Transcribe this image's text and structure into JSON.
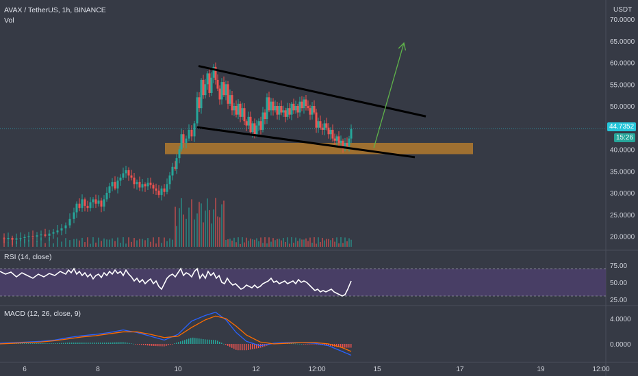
{
  "header": {
    "symbol": "AVAX / TetherUS, 1h, BINANCE",
    "volume_label": "Vol",
    "currency": "USDT"
  },
  "colors": {
    "background": "#363a45",
    "up": "#26a69a",
    "down": "#ef5350",
    "rsi_band": "#4b3f6b",
    "rsi_line": "#ffffff",
    "macd_line": "#2962ff",
    "signal_line": "#ff6d00",
    "support_zone": "#c8852a",
    "trendline": "#000000",
    "arrow": "#5fb34a",
    "last_price": "#26c6da"
  },
  "price_axis": {
    "ticks": [
      "70.0000",
      "65.0000",
      "60.0000",
      "55.0000",
      "50.0000",
      "45.0000",
      "40.0000",
      "35.0000",
      "30.0000",
      "25.0000",
      "20.0000"
    ],
    "last_price": "44.7352",
    "countdown": "15:26"
  },
  "time_axis": {
    "ticks": [
      "6",
      "8",
      "10",
      "12",
      "12:00",
      "15",
      "17",
      "19",
      "12:00"
    ]
  },
  "rsi": {
    "title": "RSI (14, close)",
    "ticks": [
      "75.00",
      "50.00",
      "25.00"
    ]
  },
  "macd": {
    "title": "MACD (12, 26, close, 9)",
    "ticks": [
      "4.0000",
      "0.0000"
    ]
  },
  "chart_data": {
    "type": "candlestick",
    "title": "AVAX / TetherUS, 1h, BINANCE",
    "ylabel": "USDT",
    "ylim": [
      17.5,
      72
    ],
    "last_price": 44.7352,
    "price_path": [
      [
        0,
        19.5
      ],
      [
        6,
        19.3
      ],
      [
        12,
        19.6
      ],
      [
        18,
        19.2
      ],
      [
        24,
        19.5
      ],
      [
        30,
        19.6
      ],
      [
        36,
        19.8
      ],
      [
        42,
        20.0
      ],
      [
        48,
        19.9
      ],
      [
        54,
        20.2
      ],
      [
        60,
        20.4
      ],
      [
        66,
        20.1
      ],
      [
        72,
        20.6
      ],
      [
        78,
        20.9
      ],
      [
        84,
        21.3
      ],
      [
        90,
        21.8
      ],
      [
        96,
        22.5
      ],
      [
        102,
        24.0
      ],
      [
        108,
        25.5
      ],
      [
        112,
        27.5
      ],
      [
        116,
        26.5
      ],
      [
        120,
        28.5
      ],
      [
        124,
        27.0
      ],
      [
        128,
        26.5
      ],
      [
        132,
        27.8
      ],
      [
        136,
        28.5
      ],
      [
        140,
        27.5
      ],
      [
        144,
        28.2
      ],
      [
        148,
        26.8
      ],
      [
        152,
        28.5
      ],
      [
        156,
        30.0
      ],
      [
        160,
        31.5
      ],
      [
        164,
        32.5
      ],
      [
        168,
        31.0
      ],
      [
        172,
        32.8
      ],
      [
        176,
        33.5
      ],
      [
        180,
        34.5
      ],
      [
        184,
        35.2
      ],
      [
        188,
        34.0
      ],
      [
        192,
        33.5
      ],
      [
        196,
        32.0
      ],
      [
        200,
        32.5
      ],
      [
        204,
        31.2
      ],
      [
        208,
        32.0
      ],
      [
        212,
        31.5
      ],
      [
        216,
        32.3
      ],
      [
        220,
        31.8
      ],
      [
        224,
        31.0
      ],
      [
        228,
        30.5
      ],
      [
        232,
        29.5
      ],
      [
        236,
        31.0
      ],
      [
        240,
        30.2
      ],
      [
        244,
        32.0
      ],
      [
        248,
        34.0
      ],
      [
        252,
        36.0
      ],
      [
        256,
        35.5
      ],
      [
        258,
        38.0
      ],
      [
        262,
        40.0
      ],
      [
        265,
        43.5
      ],
      [
        268,
        41.5
      ],
      [
        272,
        42.5
      ],
      [
        276,
        44.5
      ],
      [
        280,
        43.0
      ],
      [
        284,
        46.0
      ],
      [
        288,
        52.0
      ],
      [
        291,
        49.5
      ],
      [
        294,
        56.0
      ],
      [
        297,
        52.5
      ],
      [
        300,
        55.0
      ],
      [
        303,
        57.5
      ],
      [
        306,
        53.0
      ],
      [
        309,
        56.5
      ],
      [
        312,
        59.0
      ],
      [
        315,
        56.0
      ],
      [
        318,
        54.0
      ],
      [
        321,
        51.5
      ],
      [
        324,
        55.5
      ],
      [
        327,
        52.5
      ],
      [
        330,
        55.0
      ],
      [
        333,
        50.5
      ],
      [
        336,
        52.5
      ],
      [
        339,
        49.0
      ],
      [
        342,
        50.0
      ],
      [
        345,
        48.0
      ],
      [
        348,
        50.5
      ],
      [
        351,
        47.5
      ],
      [
        354,
        49.5
      ],
      [
        357,
        46.5
      ],
      [
        360,
        45.5
      ],
      [
        363,
        47.5
      ],
      [
        366,
        44.0
      ],
      [
        369,
        46.0
      ],
      [
        372,
        43.5
      ],
      [
        375,
        45.5
      ],
      [
        378,
        46.5
      ],
      [
        381,
        44.5
      ],
      [
        384,
        48.5
      ],
      [
        387,
        47.0
      ],
      [
        390,
        52.0
      ],
      [
        393,
        49.0
      ],
      [
        396,
        51.0
      ],
      [
        399,
        49.0
      ],
      [
        402,
        50.0
      ],
      [
        405,
        48.0
      ],
      [
        408,
        50.0
      ],
      [
        411,
        48.5
      ],
      [
        414,
        49.0
      ],
      [
        417,
        47.5
      ],
      [
        420,
        49.5
      ],
      [
        423,
        48.0
      ],
      [
        426,
        50.5
      ],
      [
        429,
        49.0
      ],
      [
        432,
        50.0
      ],
      [
        435,
        48.5
      ],
      [
        438,
        51.0
      ],
      [
        441,
        49.5
      ],
      [
        444,
        51.5
      ],
      [
        447,
        50.0
      ],
      [
        450,
        49.5
      ],
      [
        453,
        48.0
      ],
      [
        456,
        50.0
      ],
      [
        459,
        48.5
      ],
      [
        462,
        45.0
      ],
      [
        465,
        46.5
      ],
      [
        468,
        45.0
      ],
      [
        471,
        44.5
      ],
      [
        474,
        46.0
      ],
      [
        477,
        45.0
      ],
      [
        480,
        43.5
      ],
      [
        483,
        44.5
      ],
      [
        486,
        42.5
      ],
      [
        489,
        42.0
      ],
      [
        492,
        43.0
      ],
      [
        495,
        41.5
      ],
      [
        498,
        42.0
      ],
      [
        501,
        40.5
      ],
      [
        504,
        41.5
      ],
      [
        507,
        40.8
      ],
      [
        510,
        42.5
      ],
      [
        513,
        44.7
      ]
    ],
    "annotations": {
      "upper_trendline": {
        "from": [
          290,
          59.2
        ],
        "to": [
          622,
          47.6
        ]
      },
      "lower_trendline": {
        "from": [
          288,
          45.1
        ],
        "to": [
          606,
          38.2
        ]
      },
      "support_zone": {
        "x": [
          241,
          691
        ],
        "y": [
          38.9,
          41.5
        ]
      },
      "breakout_arrow": {
        "from": [
          546,
          40.3
        ],
        "to": [
          590,
          64.5
        ]
      }
    },
    "rsi_path": [
      [
        0,
        66
      ],
      [
        8,
        62
      ],
      [
        16,
        65
      ],
      [
        24,
        58
      ],
      [
        32,
        64
      ],
      [
        40,
        60
      ],
      [
        48,
        56
      ],
      [
        56,
        62
      ],
      [
        64,
        58
      ],
      [
        72,
        63
      ],
      [
        80,
        60
      ],
      [
        88,
        66
      ],
      [
        96,
        62
      ],
      [
        100,
        68
      ],
      [
        104,
        64
      ],
      [
        108,
        70
      ],
      [
        112,
        62
      ],
      [
        116,
        66
      ],
      [
        120,
        60
      ],
      [
        124,
        64
      ],
      [
        128,
        58
      ],
      [
        132,
        62
      ],
      [
        136,
        55
      ],
      [
        140,
        60
      ],
      [
        144,
        62
      ],
      [
        148,
        57
      ],
      [
        152,
        64
      ],
      [
        156,
        60
      ],
      [
        160,
        66
      ],
      [
        164,
        62
      ],
      [
        168,
        68
      ],
      [
        172,
        63
      ],
      [
        176,
        66
      ],
      [
        180,
        60
      ],
      [
        184,
        68
      ],
      [
        188,
        62
      ],
      [
        192,
        58
      ],
      [
        196,
        52
      ],
      [
        200,
        56
      ],
      [
        204,
        50
      ],
      [
        208,
        54
      ],
      [
        212,
        48
      ],
      [
        216,
        52
      ],
      [
        220,
        55
      ],
      [
        224,
        48
      ],
      [
        228,
        52
      ],
      [
        232,
        44
      ],
      [
        236,
        40
      ],
      [
        240,
        48
      ],
      [
        244,
        56
      ],
      [
        248,
        60
      ],
      [
        252,
        62
      ],
      [
        256,
        58
      ],
      [
        260,
        64
      ],
      [
        264,
        70
      ],
      [
        268,
        60
      ],
      [
        272,
        64
      ],
      [
        276,
        62
      ],
      [
        280,
        58
      ],
      [
        284,
        66
      ],
      [
        288,
        70
      ],
      [
        292,
        56
      ],
      [
        296,
        62
      ],
      [
        300,
        56
      ],
      [
        304,
        66
      ],
      [
        308,
        60
      ],
      [
        312,
        64
      ],
      [
        316,
        56
      ],
      [
        320,
        60
      ],
      [
        324,
        50
      ],
      [
        328,
        48
      ],
      [
        332,
        56
      ],
      [
        336,
        50
      ],
      [
        340,
        46
      ],
      [
        344,
        48
      ],
      [
        348,
        44
      ],
      [
        352,
        40
      ],
      [
        356,
        42
      ],
      [
        360,
        46
      ],
      [
        364,
        44
      ],
      [
        368,
        42
      ],
      [
        372,
        46
      ],
      [
        376,
        42
      ],
      [
        380,
        44
      ],
      [
        384,
        48
      ],
      [
        388,
        50
      ],
      [
        392,
        52
      ],
      [
        396,
        56
      ],
      [
        400,
        50
      ],
      [
        404,
        52
      ],
      [
        408,
        48
      ],
      [
        412,
        50
      ],
      [
        416,
        52
      ],
      [
        420,
        48
      ],
      [
        424,
        50
      ],
      [
        428,
        52
      ],
      [
        432,
        48
      ],
      [
        436,
        54
      ],
      [
        440,
        50
      ],
      [
        444,
        52
      ],
      [
        448,
        50
      ],
      [
        452,
        46
      ],
      [
        456,
        42
      ],
      [
        460,
        38
      ],
      [
        464,
        40
      ],
      [
        468,
        36
      ],
      [
        472,
        38
      ],
      [
        476,
        36
      ],
      [
        480,
        38
      ],
      [
        484,
        40
      ],
      [
        488,
        36
      ],
      [
        492,
        34
      ],
      [
        496,
        32
      ],
      [
        500,
        30
      ],
      [
        504,
        32
      ],
      [
        508,
        40
      ],
      [
        513,
        52
      ]
    ],
    "macd_path": [
      [
        0,
        0.1
      ],
      [
        20,
        0.2
      ],
      [
        40,
        0.3
      ],
      [
        60,
        0.4
      ],
      [
        80,
        0.6
      ],
      [
        100,
        1.0
      ],
      [
        120,
        1.3
      ],
      [
        140,
        1.5
      ],
      [
        160,
        1.8
      ],
      [
        180,
        2.2
      ],
      [
        200,
        1.8
      ],
      [
        220,
        1.2
      ],
      [
        240,
        0.6
      ],
      [
        260,
        1.5
      ],
      [
        280,
        3.6
      ],
      [
        300,
        4.5
      ],
      [
        315,
        5.0
      ],
      [
        330,
        3.8
      ],
      [
        345,
        1.8
      ],
      [
        360,
        0.4
      ],
      [
        380,
        -0.3
      ],
      [
        400,
        0.1
      ],
      [
        420,
        0.2
      ],
      [
        440,
        0.2
      ],
      [
        460,
        0.1
      ],
      [
        480,
        -0.3
      ],
      [
        500,
        -1.2
      ],
      [
        513,
        -1.8
      ]
    ],
    "signal_path": [
      [
        0,
        0.0
      ],
      [
        20,
        0.1
      ],
      [
        40,
        0.2
      ],
      [
        60,
        0.3
      ],
      [
        80,
        0.5
      ],
      [
        100,
        0.8
      ],
      [
        120,
        1.1
      ],
      [
        140,
        1.3
      ],
      [
        160,
        1.6
      ],
      [
        180,
        1.9
      ],
      [
        200,
        1.9
      ],
      [
        220,
        1.5
      ],
      [
        240,
        1.0
      ],
      [
        260,
        1.2
      ],
      [
        280,
        2.6
      ],
      [
        300,
        3.8
      ],
      [
        315,
        4.4
      ],
      [
        330,
        4.0
      ],
      [
        345,
        2.8
      ],
      [
        360,
        1.4
      ],
      [
        380,
        0.3
      ],
      [
        400,
        0.0
      ],
      [
        420,
        0.1
      ],
      [
        440,
        0.2
      ],
      [
        460,
        0.2
      ],
      [
        480,
        0.0
      ],
      [
        500,
        -0.6
      ],
      [
        513,
        -1.2
      ]
    ]
  }
}
